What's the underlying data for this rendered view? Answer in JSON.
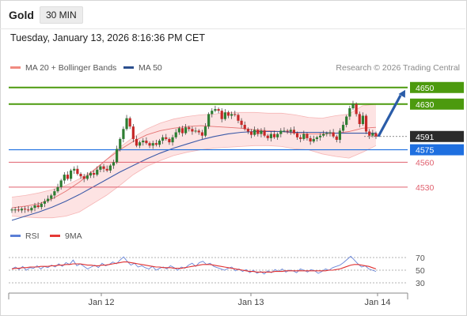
{
  "header": {
    "symbol": "Gold",
    "timeframe": "30 MIN",
    "datetime": "Tuesday, January 13, 2026 8:16:36 PM CET"
  },
  "legend": {
    "ma20": "MA 20 + Bollinger Bands",
    "ma50": "MA 50",
    "credit": "Research © 2026 Trading Central",
    "rsi": "RSI",
    "ma9": "9MA"
  },
  "colors": {
    "candle_up": "#2e7d32",
    "candle_down": "#c62828",
    "bollinger_fill": "#fde3e3",
    "ma20": "#e57373",
    "ma50": "#3c5aa8",
    "target_green": "#4c9a0e",
    "pivot_blue": "#1e6fe0",
    "support_red": "#e0606e",
    "arrow": "#2a5ca8",
    "last_price_bg": "#2b2b2b",
    "rsi_line": "#6a86d8",
    "rsi_ma": "#e03030"
  },
  "chart_data": [
    {
      "type": "candlestick",
      "x_ticks": [
        "Jan 12",
        "Jan 13",
        "Jan 14"
      ],
      "ylim": [
        4488,
        4665
      ],
      "levels": [
        {
          "label": "4650",
          "value": 4650,
          "kind": "resistance"
        },
        {
          "label": "4630",
          "value": 4630,
          "kind": "resistance"
        },
        {
          "label": "4591",
          "value": 4591,
          "kind": "last"
        },
        {
          "label": "4575",
          "value": 4575,
          "kind": "pivot"
        },
        {
          "label": "4560",
          "value": 4560,
          "kind": "support"
        },
        {
          "label": "4530",
          "value": 4530,
          "kind": "support"
        }
      ],
      "close": [
        4503,
        4503,
        4502,
        4504,
        4503,
        4502,
        4505,
        4508,
        4506,
        4510,
        4513,
        4516,
        4520,
        4525,
        4530,
        4538,
        4545,
        4540,
        4550,
        4552,
        4546,
        4543,
        4540,
        4544,
        4547,
        4545,
        4551,
        4555,
        4552,
        4550,
        4556,
        4560,
        4576,
        4588,
        4600,
        4613,
        4603,
        4588,
        4580,
        4584,
        4586,
        4583,
        4580,
        4583,
        4581,
        4586,
        4590,
        4588,
        4584,
        4590,
        4596,
        4601,
        4595,
        4602,
        4600,
        4597,
        4598,
        4596,
        4592,
        4603,
        4618,
        4622,
        4624,
        4622,
        4612,
        4620,
        4616,
        4618,
        4617,
        4610,
        4605,
        4600,
        4597,
        4593,
        4599,
        4594,
        4598,
        4592,
        4589,
        4594,
        4590,
        4594,
        4598,
        4598,
        4597,
        4599,
        4595,
        4590,
        4588,
        4594,
        4589,
        4585,
        4588,
        4590,
        4592,
        4594,
        4595,
        4596,
        4591,
        4587,
        4598,
        4605,
        4615,
        4625,
        4630,
        4618,
        4606,
        4616,
        4597,
        4592,
        4595,
        4591
      ],
      "bollinger_upper": [
        4518,
        4520,
        4523,
        4527,
        4532,
        4540,
        4550,
        4563,
        4578,
        4590,
        4600,
        4607,
        4612,
        4615,
        4617,
        4618,
        4620,
        4620,
        4620,
        4619,
        4619,
        4617,
        4614,
        4613,
        4616,
        4618,
        4628,
        4630
      ],
      "bollinger_lower": [
        4495,
        4494,
        4493,
        4493,
        4495,
        4500,
        4510,
        4520,
        4532,
        4545,
        4555,
        4562,
        4568,
        4572,
        4575,
        4577,
        4578,
        4579,
        4580,
        4580,
        4579,
        4576,
        4575,
        4570,
        4567,
        4565,
        4572,
        4580
      ],
      "ma20": [
        4505,
        4507,
        4510,
        4516,
        4525,
        4536,
        4549,
        4563,
        4575,
        4585,
        4593,
        4598,
        4601,
        4603,
        4604,
        4603,
        4602,
        4601,
        4599,
        4598,
        4597,
        4595,
        4594,
        4594,
        4595,
        4597,
        4601,
        4602
      ],
      "ma50": [
        4490,
        4495,
        4500,
        4506,
        4513,
        4521,
        4530,
        4539,
        4548,
        4556,
        4564,
        4571,
        4577,
        4582,
        4587,
        4591,
        4594,
        4596,
        4597,
        4597,
        4597,
        4596,
        4596,
        4596,
        4595,
        4595,
        4595,
        4595
      ],
      "projection": {
        "from": 4591,
        "to": 4650
      }
    },
    {
      "type": "line",
      "title": "RSI",
      "ylim": [
        20,
        80
      ],
      "y_ticks": [
        70,
        50,
        30
      ],
      "series": [
        {
          "name": "RSI",
          "values": [
            52,
            55,
            51,
            56,
            50,
            54,
            53,
            57,
            52,
            56,
            54,
            58,
            55,
            60,
            56,
            62,
            59,
            66,
            57,
            60,
            56,
            52,
            55,
            58,
            54,
            61,
            57,
            59,
            63,
            60,
            66,
            71,
            64,
            58,
            61,
            55,
            57,
            54,
            52,
            56,
            50,
            53,
            55,
            52,
            57,
            54,
            50,
            55,
            53,
            58,
            61,
            56,
            62,
            64,
            59,
            61,
            56,
            54,
            52,
            50,
            53,
            55,
            49,
            52,
            48,
            51,
            46,
            50,
            45,
            48,
            44,
            49,
            46,
            51,
            48,
            52,
            47,
            50,
            49,
            46,
            52,
            50,
            47,
            51,
            49,
            45,
            48,
            52,
            50,
            54,
            56,
            58,
            62,
            67,
            72,
            66,
            60,
            55,
            57,
            52,
            50,
            48
          ]
        },
        {
          "name": "9MA",
          "values": [
            52,
            53,
            53,
            54,
            54,
            55,
            55,
            55,
            56,
            56,
            56,
            57,
            57,
            58,
            58,
            59,
            59,
            60,
            60,
            60,
            59,
            58,
            58,
            57,
            57,
            58,
            58,
            59,
            60,
            61,
            62,
            63,
            63,
            62,
            61,
            60,
            59,
            58,
            57,
            56,
            55,
            55,
            54,
            54,
            54,
            53,
            53,
            53,
            54,
            55,
            56,
            57,
            58,
            59,
            59,
            59,
            58,
            57,
            56,
            55,
            54,
            53,
            52,
            51,
            50,
            49,
            48,
            48,
            47,
            47,
            47,
            47,
            47,
            48,
            48,
            48,
            49,
            49,
            49,
            49,
            49,
            49,
            49,
            49,
            49,
            49,
            49,
            49,
            50,
            50,
            51,
            52,
            54,
            56,
            58,
            59,
            59,
            58,
            57,
            56,
            54,
            52
          ]
        }
      ]
    }
  ]
}
